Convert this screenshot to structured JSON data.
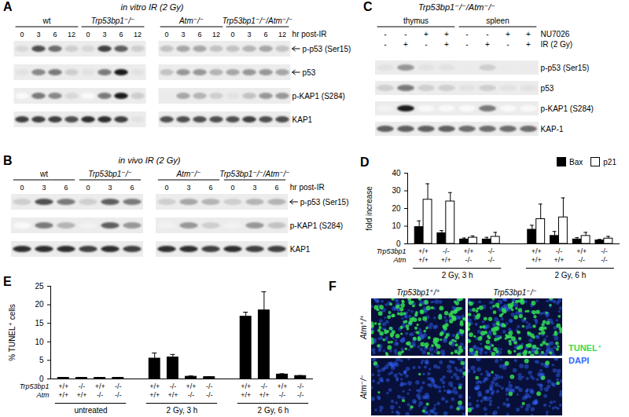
{
  "panels": {
    "A": {
      "letter": "A",
      "title": "in vitro IR (2 Gy)",
      "time_label": "hr post-IR",
      "groups": [
        {
          "name": "wt",
          "times": [
            "0",
            "3",
            "6",
            "12"
          ]
        },
        {
          "name": "Trp53bp1⁻/⁻",
          "times": [
            "0",
            "3",
            "6",
            "12"
          ]
        },
        {
          "name": "Atm⁻/⁻",
          "times": [
            "0",
            "3",
            "6",
            "12"
          ]
        },
        {
          "name": "Trp53bp1⁻/⁻/Atm⁻/⁻",
          "times": [
            "0",
            "3",
            "6",
            "12"
          ]
        }
      ],
      "rows": [
        {
          "label": "p-p53 (Ser15)",
          "arrow": true,
          "bands": [
            0.25,
            0.75,
            0.65,
            0.3,
            0.25,
            0.8,
            0.7,
            0.3,
            0.35,
            0.45,
            0.45,
            0.35,
            0.35,
            0.4,
            0.45,
            0.35
          ]
        },
        {
          "label": "p53",
          "arrow": true,
          "bands": [
            0.2,
            0.55,
            0.6,
            0.3,
            0.2,
            0.6,
            0.9,
            0.2,
            0.35,
            0.5,
            0.5,
            0.4,
            0.45,
            0.5,
            0.5,
            0.45
          ]
        },
        {
          "label": "p-KAP1 (S284)",
          "arrow": false,
          "bands": [
            0.05,
            0.6,
            0.55,
            0.25,
            0.05,
            0.6,
            0.9,
            0.3,
            0.15,
            0.45,
            0.4,
            0.3,
            0.2,
            0.35,
            0.5,
            0.5
          ]
        },
        {
          "label": "KAP1",
          "arrow": false,
          "bands": [
            0.8,
            0.8,
            0.8,
            0.75,
            0.85,
            0.85,
            0.8,
            0.2,
            0.75,
            0.75,
            0.75,
            0.75,
            0.75,
            0.8,
            0.75,
            0.75
          ]
        }
      ]
    },
    "B": {
      "letter": "B",
      "title": "in vivo IR (2 Gy)",
      "time_label": "hr post-IR",
      "groups": [
        {
          "name": "wt",
          "times": [
            "0",
            "3",
            "6"
          ]
        },
        {
          "name": "Trp53bp1⁻/⁻",
          "times": [
            "0",
            "3",
            "6"
          ]
        },
        {
          "name": "Atm⁻/⁻",
          "times": [
            "0",
            "3",
            "6"
          ]
        },
        {
          "name": "Trp53bp1⁻/⁻/Atm⁻/⁻",
          "times": [
            "0",
            "3",
            "6"
          ]
        }
      ],
      "rows": [
        {
          "label": "p-p53 (Ser15)",
          "arrow": true,
          "bands": [
            0.3,
            0.75,
            0.6,
            0.3,
            0.7,
            0.6,
            0.3,
            0.45,
            0.4,
            0.3,
            0.4,
            0.4
          ]
        },
        {
          "label": "p-KAP1 (S284)",
          "arrow": false,
          "bands": [
            0.05,
            0.6,
            0.4,
            0.1,
            0.7,
            0.5,
            0.1,
            0.5,
            0.3,
            0.1,
            0.5,
            0.35
          ]
        },
        {
          "label": "KAP1",
          "arrow": false,
          "bands": [
            0.85,
            0.85,
            0.85,
            0.8,
            0.85,
            0.8,
            0.85,
            0.85,
            0.8,
            0.85,
            0.8,
            0.8
          ]
        }
      ]
    },
    "C": {
      "letter": "C",
      "title": "Trp53bp1⁻/⁻/Atm⁻/⁻",
      "tissues": [
        "thymus",
        "spleen"
      ],
      "treatments": [
        {
          "label": "NU7026",
          "signs": [
            "-",
            "-",
            "+",
            "+",
            "-",
            "-",
            "+",
            "+"
          ]
        },
        {
          "label": "IR (2 Gy)",
          "signs": [
            "-",
            "+",
            "-",
            "+",
            "-",
            "+",
            "-",
            "+"
          ]
        }
      ],
      "rows": [
        {
          "label": "p-p53 (Ser15)",
          "bands": [
            0.2,
            0.5,
            0.2,
            0.2,
            0.15,
            0.3,
            0.15,
            0.15
          ]
        },
        {
          "label": "p53",
          "bands": [
            0.3,
            0.6,
            0.3,
            0.3,
            0.2,
            0.3,
            0.2,
            0.2
          ]
        },
        {
          "label": "p-KAP1 (S284)",
          "bands": [
            0.1,
            0.9,
            0.05,
            0.05,
            0.05,
            0.6,
            0.05,
            0.05
          ]
        },
        {
          "label": "KAP-1",
          "bands": [
            0.7,
            0.7,
            0.7,
            0.7,
            0.65,
            0.65,
            0.65,
            0.65
          ]
        }
      ]
    },
    "F": {
      "letter": "F",
      "columns": [
        "Trp53bp1⁺/⁺",
        "Trp53bp1⁻/⁻"
      ],
      "rows": [
        "Atm⁺/⁺",
        "Atm⁻/⁻"
      ],
      "tunel_fraction": [
        [
          0.35,
          0.35
        ],
        [
          0.03,
          0.03
        ]
      ],
      "legend": [
        {
          "label": "TUNEL⁺",
          "color": "#33dd55"
        },
        {
          "label": "DAPI",
          "color": "#3366ff"
        }
      ]
    }
  },
  "chart_data": [
    {
      "panel": "D",
      "type": "bar",
      "ylabel": "fold increase",
      "ylim": [
        0,
        40
      ],
      "yticks": [
        0,
        10,
        20,
        30,
        40
      ],
      "legend": "top-right",
      "row_labels": [
        "Trp53bp1",
        "Atm"
      ],
      "groups": [
        {
          "label": "2 Gy, 3 h",
          "categories": [
            [
              "+/+",
              "+/+"
            ],
            [
              "-/-",
              "+/+"
            ],
            [
              "+/+",
              "-/-"
            ],
            [
              "-/-",
              "-/-"
            ]
          ]
        },
        {
          "label": "2 Gy, 6 h",
          "categories": [
            [
              "+/+",
              "+/+"
            ],
            [
              "-/-",
              "+/+"
            ],
            [
              "+/+",
              "-/-"
            ],
            [
              "-/-",
              "-/-"
            ]
          ]
        }
      ],
      "series": [
        {
          "name": "Bax",
          "color": "#000000",
          "values": [
            9.5,
            6,
            2.5,
            2.5,
            8,
            4.5,
            2.5,
            2
          ],
          "errors": [
            3.5,
            1.5,
            0.8,
            1.2,
            2.5,
            2.5,
            1,
            0.5
          ]
        },
        {
          "name": "p21",
          "color": "#ffffff",
          "values": [
            25,
            24,
            3.5,
            4,
            14,
            15,
            4.5,
            3
          ],
          "errors": [
            9,
            5,
            1,
            2.5,
            8.5,
            11,
            2,
            1.2
          ]
        }
      ]
    },
    {
      "panel": "E",
      "type": "bar",
      "ylabel": "% TUNEL⁺ cells",
      "ylim": [
        0,
        25
      ],
      "yticks": [
        0,
        5,
        10,
        15,
        20,
        25
      ],
      "row_labels": [
        "Trp53bp1",
        "Atm"
      ],
      "groups": [
        {
          "label": "untreated",
          "categories": [
            [
              "+/+",
              "+/+"
            ],
            [
              "-/-",
              "+/+"
            ],
            [
              "+/+",
              "-/-"
            ],
            [
              "-/-",
              "-/-"
            ]
          ]
        },
        {
          "label": "2 Gy, 3 h",
          "categories": [
            [
              "+/+",
              "+/+"
            ],
            [
              "-/-",
              "+/+"
            ],
            [
              "+/+",
              "-/-"
            ],
            [
              "-/-",
              "-/-"
            ]
          ]
        },
        {
          "label": "2 Gy, 6 h",
          "categories": [
            [
              "+/+",
              "+/+"
            ],
            [
              "-/-",
              "+/+"
            ],
            [
              "+/+",
              "-/-"
            ],
            [
              "-/-",
              "-/-"
            ]
          ]
        }
      ],
      "color": "#000000",
      "values": [
        0.3,
        0.3,
        0.3,
        0.3,
        5.5,
        5.8,
        0.6,
        0.5,
        16.8,
        18.5,
        1.2,
        0.8
      ],
      "errors": [
        0.1,
        0.1,
        0.1,
        0.1,
        1.5,
        0.8,
        0.2,
        0.1,
        1.2,
        5.0,
        0.2,
        0.1
      ]
    }
  ]
}
